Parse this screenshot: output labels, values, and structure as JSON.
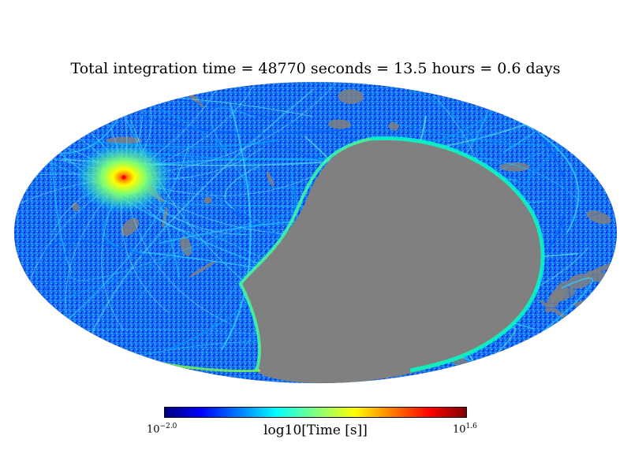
{
  "chart_data": {
    "type": "heatmap",
    "projection": "mollweide",
    "title": "Total integration time = 48770 seconds = 13.5 hours = 0.6 days",
    "colorbar": {
      "label": "log10[Time [s]]",
      "min_base": "10",
      "min_exp": "−2.0",
      "max_base": "10",
      "max_exp": "1.6",
      "colormap": "jet",
      "range": [
        -2.0,
        1.6
      ]
    },
    "colors": {
      "unobserved": "#808080",
      "low": "#00007f",
      "mid_low": "#0000ff",
      "mid": "#00ffff",
      "mid_high": "#ffff00",
      "high": "#7f0000"
    },
    "features": {
      "hotspot": "bright red peak with yellow-green halo",
      "unobserved_region": "large gray gap in lower-right sky"
    }
  }
}
